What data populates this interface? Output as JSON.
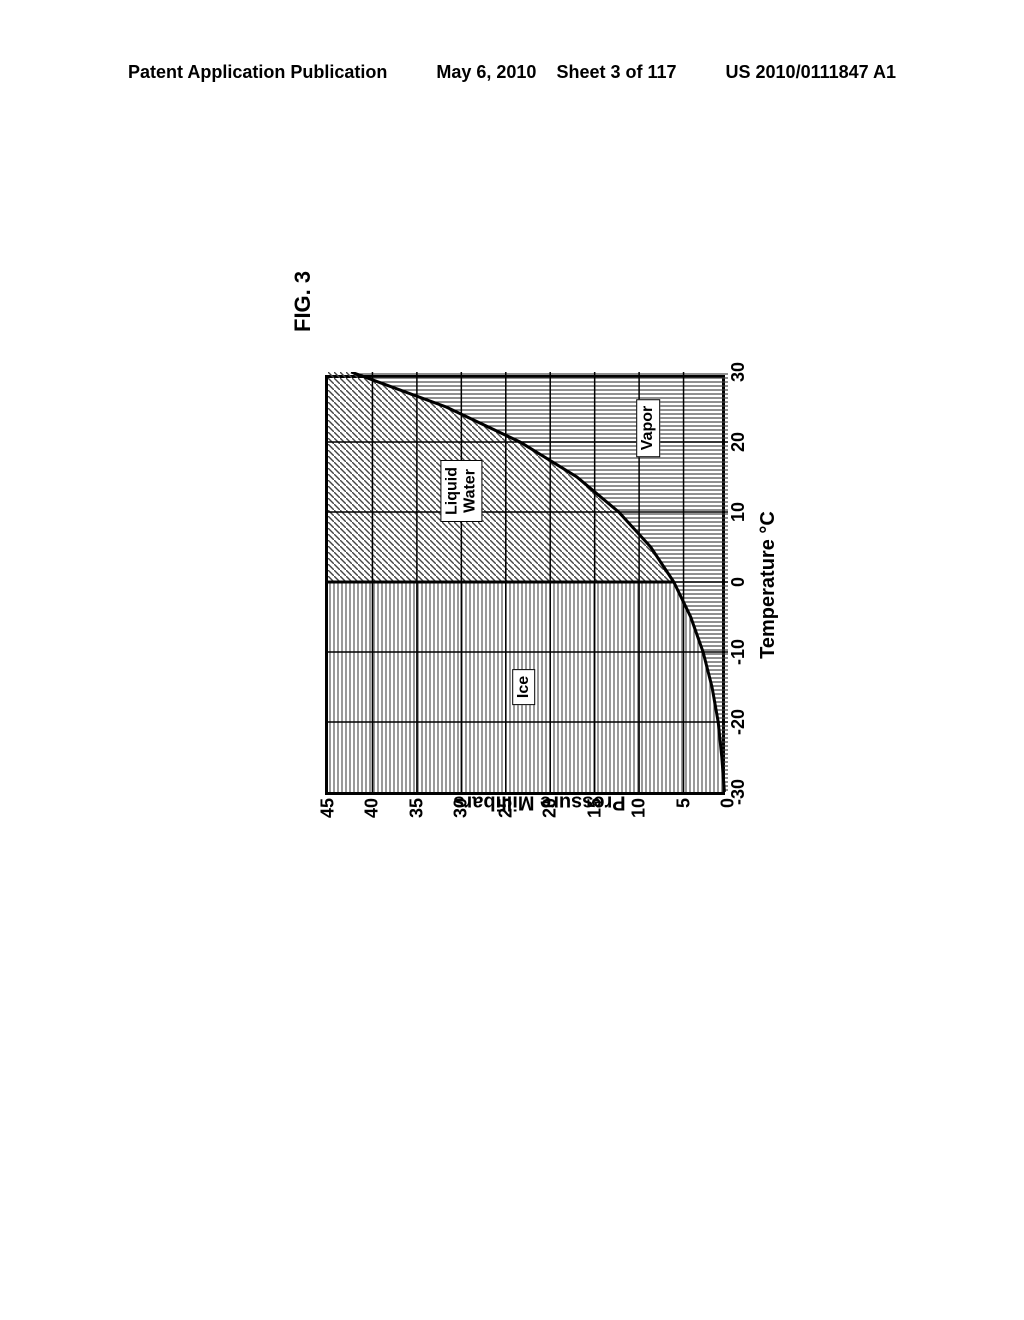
{
  "header": {
    "left": "Patent Application Publication",
    "center_date": "May 6, 2010",
    "center_sheet": "Sheet 3 of 117",
    "right": "US 2010/0111847 A1"
  },
  "figure_label": "FIG. 3",
  "chart": {
    "type": "phase-diagram",
    "x_axis": {
      "label": "Temperature °C",
      "min": -30,
      "max": 30,
      "ticks": [
        -30,
        -20,
        -10,
        0,
        10,
        20,
        30
      ],
      "fontsize": 18
    },
    "y_axis": {
      "label": "Pressure Millibars",
      "min": 0,
      "max": 45,
      "ticks": [
        0,
        5,
        10,
        15,
        20,
        25,
        30,
        35,
        40,
        45
      ],
      "fontsize": 18
    },
    "axis_label_fontsize": 20,
    "region_label_fontsize": 16,
    "regions": {
      "ice": {
        "label": "Ice",
        "pattern": "horizontal-lines",
        "pattern_color": "#555555",
        "label_pos_x_temp": -15,
        "label_pos_y_pressure": 23
      },
      "liquid_water": {
        "label": "Liquid\nWater",
        "pattern": "diagonal-lines",
        "pattern_color": "#444444",
        "label_pos_x_temp": 13,
        "label_pos_y_pressure": 30
      },
      "vapor": {
        "label": "Vapor",
        "pattern": "vertical-lines",
        "pattern_color": "#444444",
        "label_pos_x_temp": 22,
        "label_pos_y_pressure": 9
      }
    },
    "triple_point": {
      "temp": 0,
      "pressure": 6.1
    },
    "curve_ice_vapor": [
      {
        "temp": -30,
        "pressure": 0.4
      },
      {
        "temp": -25,
        "pressure": 0.7
      },
      {
        "temp": -20,
        "pressure": 1.1
      },
      {
        "temp": -15,
        "pressure": 1.8
      },
      {
        "temp": -10,
        "pressure": 2.8
      },
      {
        "temp": -5,
        "pressure": 4.2
      },
      {
        "temp": 0,
        "pressure": 6.1
      }
    ],
    "curve_liquid_vapor": [
      {
        "temp": 0,
        "pressure": 6.1
      },
      {
        "temp": 5,
        "pressure": 8.7
      },
      {
        "temp": 10,
        "pressure": 12.3
      },
      {
        "temp": 15,
        "pressure": 17.0
      },
      {
        "temp": 20,
        "pressure": 23.4
      },
      {
        "temp": 25,
        "pressure": 31.7
      },
      {
        "temp": 30,
        "pressure": 42.4
      }
    ],
    "curve_ice_liquid_x_temp": 0,
    "colors": {
      "background": "#ffffff",
      "border": "#000000",
      "grid": "#000000",
      "curve": "#000000"
    },
    "line_width_border": 3,
    "line_width_grid": 2,
    "line_width_curve": 3
  }
}
